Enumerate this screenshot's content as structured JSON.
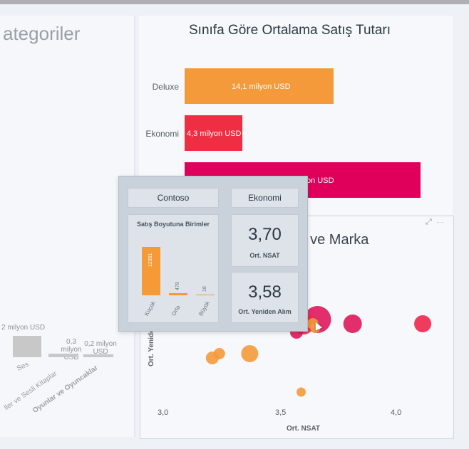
{
  "left_panel": {
    "title": "ategoriler",
    "values": [
      "2 milyon USD",
      "0,3 milyon USD",
      "0,2 milyon USD"
    ],
    "categories": [
      "Ses",
      "ller ve Sesli Kitaplar",
      "Oyunlar ve Oyuncaklar"
    ]
  },
  "bar_chart": {
    "title": "Sınıfa Göre Ortalama Satış Tutarı",
    "rows": [
      {
        "category": "Deluxe",
        "label": "14,1 milyon USD",
        "color": "#f59a3b"
      },
      {
        "category": "Ekonomi",
        "label": "4,3 milyon USD",
        "color": "#ef2d43"
      },
      {
        "category": "",
        "label": "on USD",
        "color": "#e0005c"
      }
    ]
  },
  "scatter": {
    "title": "f ve Marka",
    "xlabel": "Ort. NSAT",
    "ylabel": "Ort. Yenide",
    "xticks": [
      "3,0",
      "3,5",
      "4,0"
    ],
    "icons": [
      "expand-icon",
      "more-options-icon"
    ]
  },
  "tooltip": {
    "brand": "Contoso",
    "class": "Ekonomi",
    "mini_chart": {
      "title": "Satış Boyutuna Birimler",
      "bars": [
        {
          "label": "Küçük",
          "value": 12351,
          "value_text": "12351"
        },
        {
          "label": "Orta",
          "value": 478,
          "value_text": "478"
        },
        {
          "label": "Büyük",
          "value": 18,
          "value_text": "18"
        }
      ]
    },
    "kpi1": {
      "value": "3,70",
      "label": "Ort. NSAT"
    },
    "kpi2": {
      "value": "3,58",
      "label": "Ort. Yeniden Alım"
    }
  },
  "chart_data": [
    {
      "type": "bar",
      "title": "Sınıfa Göre Ortalama Satış Tutarı",
      "categories": [
        "Deluxe",
        "Ekonomi",
        ""
      ],
      "value_labels": [
        "14,1 milyon USD",
        "4,3 milyon USD",
        "on USD"
      ]
    },
    {
      "type": "bar",
      "title": "Satış Boyutuna Birimler",
      "categories": [
        "Küçük",
        "Orta",
        "Büyük"
      ],
      "values": [
        12351,
        478,
        18
      ]
    },
    {
      "type": "scatter",
      "xlabel": "Ort. NSAT",
      "ylabel": "Ort. Yenide",
      "xticks": [
        "3,0",
        "3,5",
        "4,0"
      ],
      "points": [
        {
          "x": 3.66,
          "y": 3.59,
          "size": 38,
          "color": "#e0175a"
        },
        {
          "x": 3.6,
          "y": 3.58,
          "size": 30,
          "color": "#f0264a"
        },
        {
          "x": 3.53,
          "y": 3.58,
          "size": 20,
          "color": "#f0264a"
        },
        {
          "x": 3.64,
          "y": 3.58,
          "size": 16,
          "color": "#f59a3b"
        },
        {
          "x": 3.81,
          "y": 3.58,
          "size": 26,
          "color": "#e0175a"
        },
        {
          "x": 4.11,
          "y": 3.58,
          "size": 24,
          "color": "#f0264a"
        },
        {
          "x": 3.57,
          "y": 3.56,
          "size": 18,
          "color": "#e0175a"
        },
        {
          "x": 3.65,
          "y": 3.57,
          "size": 14,
          "color": "#f59a3b"
        },
        {
          "x": 3.21,
          "y": 3.5,
          "size": 18,
          "color": "#f59a3b"
        },
        {
          "x": 3.24,
          "y": 3.51,
          "size": 16,
          "color": "#f59a3b"
        },
        {
          "x": 3.37,
          "y": 3.51,
          "size": 24,
          "color": "#f59a3b"
        },
        {
          "x": 3.59,
          "y": 3.42,
          "size": 13,
          "color": "#f59a3b"
        }
      ]
    }
  ]
}
